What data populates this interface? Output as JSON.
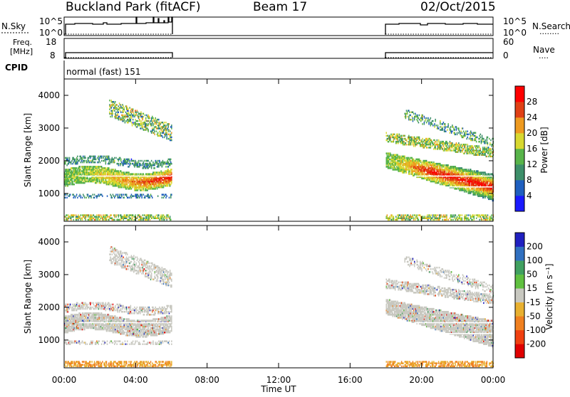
{
  "header": {
    "title": "Buckland Park (fitACF)",
    "beam": "Beam 17",
    "date": "02/Oct/2015"
  },
  "top_panel": {
    "left_label": "N.Sky",
    "left_ticks": [
      "10^5",
      "10^0"
    ],
    "right_ticks": [
      "10^5",
      "10^0"
    ],
    "right_label": "N.Search",
    "right_dots": "........"
  },
  "freq_panel": {
    "left_label_1": "Freq.",
    "left_label_2": "[MHz]",
    "left_ticks": [
      "18",
      "8"
    ],
    "right_ticks": [
      "60",
      "0"
    ],
    "right_label": "Nave",
    "right_dots": "...."
  },
  "cpid": {
    "label": "CPID",
    "value": "normal (fast) 151"
  },
  "chart_data": [
    {
      "type": "heatmap",
      "name": "power",
      "ylabel": "Slant Range [km]",
      "ylim": [
        150,
        4500
      ],
      "yticks": [
        "1000",
        "2000",
        "3000",
        "4000"
      ],
      "colorbar_label": "Power [dB]",
      "colorbar_ticks": [
        "4",
        "8",
        "12",
        "16",
        "20",
        "24",
        "28"
      ],
      "colors": [
        "#1a1aff",
        "#1f5fbf",
        "#3d8f6a",
        "#58b44a",
        "#d8d830",
        "#ee9a20",
        "#e04015",
        "#ff0000"
      ],
      "data_gap_ut": [
        6.0,
        18.0
      ]
    },
    {
      "type": "heatmap",
      "name": "velocity",
      "ylabel": "Slant Range [km]",
      "ylim": [
        150,
        4500
      ],
      "yticks": [
        "1000",
        "2000",
        "3000",
        "4000"
      ],
      "colorbar_label": "Velocity [m s⁻¹]",
      "colorbar_ticks": [
        "200",
        "100",
        "50",
        "15",
        "-15",
        "-50",
        "-100",
        "-200"
      ],
      "colors": [
        "#2020c0",
        "#3070c0",
        "#40a060",
        "#60c040",
        "#c8c8c0",
        "#e8b030",
        "#f08020",
        "#f04010",
        "#e00000"
      ],
      "data_gap_ut": [
        6.0,
        18.0
      ]
    }
  ],
  "time_axis": {
    "xlim": [
      0,
      24
    ],
    "ticks": [
      "00:00",
      "04:00",
      "08:00",
      "12:00",
      "16:00",
      "20:00",
      "00:00"
    ],
    "label": "Time UT"
  }
}
